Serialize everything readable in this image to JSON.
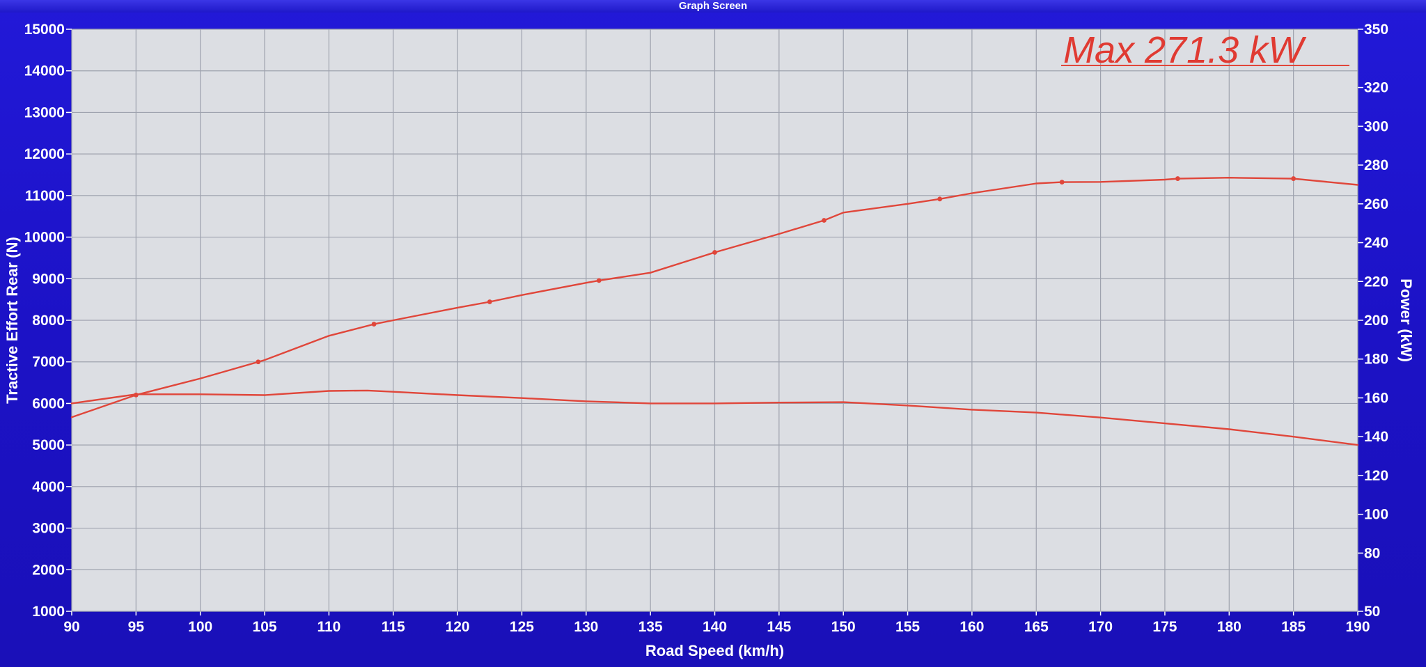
{
  "window": {
    "title": "Graph Screen"
  },
  "chart_data": {
    "type": "line",
    "xlabel": "Road Speed (km/h)",
    "ylabel_left": "Tractive Effort Rear (N)",
    "ylabel_right": "Power (kW)",
    "xlim": [
      90,
      190
    ],
    "ylim_left": [
      1000,
      15000
    ],
    "ylim_right": [
      50,
      350
    ],
    "x_ticks": [
      90,
      95,
      100,
      105,
      110,
      115,
      120,
      125,
      130,
      135,
      140,
      145,
      150,
      155,
      160,
      165,
      170,
      175,
      180,
      185,
      190
    ],
    "y_left_ticks": [
      1000,
      2000,
      3000,
      4000,
      5000,
      6000,
      7000,
      8000,
      9000,
      10000,
      11000,
      12000,
      13000,
      14000,
      15000
    ],
    "y_right_ticks": [
      50,
      80,
      100,
      120,
      140,
      160,
      180,
      200,
      220,
      240,
      260,
      280,
      300,
      320,
      350
    ],
    "grid": true,
    "line_color": "#e0463a",
    "annotation": "Max 271.3 kW",
    "series": [
      {
        "axis": "right",
        "x": [
          90,
          95,
          100,
          105,
          110,
          113.5,
          115,
          120,
          122.5,
          125,
          130,
          131,
          135,
          140,
          145,
          148.5,
          150,
          155,
          157.5,
          160,
          165,
          167,
          170,
          175,
          176,
          180,
          185,
          190
        ],
        "values": [
          150,
          161.5,
          170,
          179.5,
          192,
          198,
          200,
          206.5,
          209.5,
          213,
          219.3,
          220.5,
          224.5,
          235,
          244.5,
          251.5,
          255.5,
          260,
          262.5,
          265.5,
          270.5,
          271.2,
          271.3,
          272.5,
          273,
          273.5,
          273,
          269.8
        ],
        "markers_x": [
          95,
          104.5,
          113.5,
          122.5,
          131,
          140,
          148.5,
          157.5,
          167,
          176,
          185
        ]
      },
      {
        "axis": "left",
        "x": [
          90,
          95,
          100,
          105,
          110,
          113,
          115,
          120,
          125,
          130,
          135,
          140,
          145,
          150,
          155,
          160,
          165,
          170,
          175,
          180,
          185,
          190
        ],
        "values": [
          6000,
          6220,
          6220,
          6200,
          6300,
          6310,
          6280,
          6200,
          6130,
          6050,
          6000,
          6000,
          6020,
          6030,
          5950,
          5850,
          5780,
          5660,
          5520,
          5380,
          5200,
          5000
        ]
      }
    ]
  }
}
